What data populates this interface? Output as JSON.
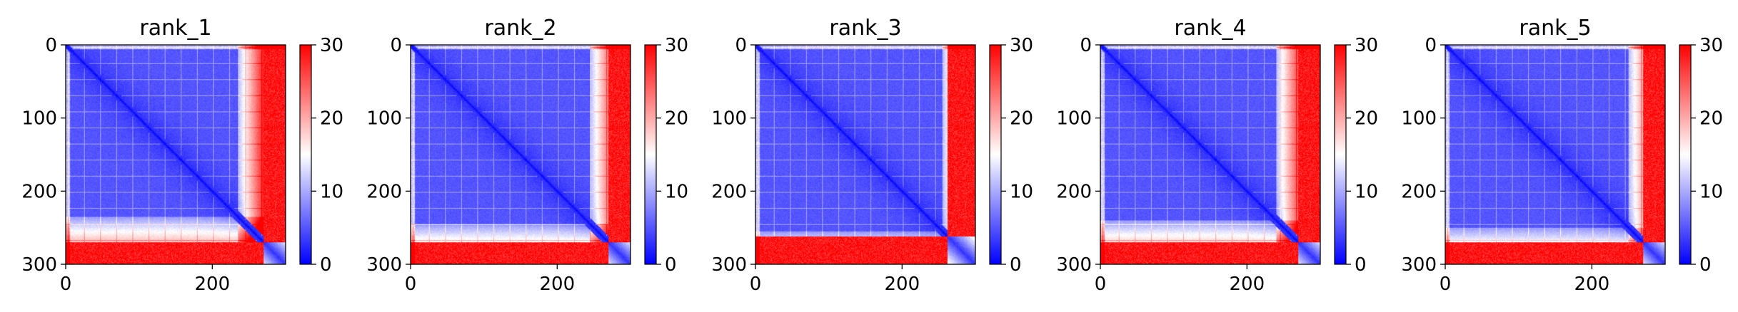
{
  "chart_data": [
    {
      "type": "heatmap",
      "title": "rank_1",
      "xlabel": "",
      "ylabel": "",
      "xlim": [
        0,
        300
      ],
      "ylim": [
        300,
        0
      ],
      "x_ticks": [
        "0",
        "200"
      ],
      "y_ticks": [
        "0",
        "100",
        "200",
        "300"
      ],
      "colorbar": {
        "range": [
          0,
          30
        ],
        "ticks": [
          "0",
          "10",
          "20",
          "30"
        ],
        "colormap": "bwr"
      },
      "domain_boundary": 270,
      "edge": {
        "high": 30,
        "low_start": 235
      },
      "notes": "pairwise distance matrix; low values (blue) in upper-left block up to ~270, high values (red) in last ~30 rows/cols"
    },
    {
      "type": "heatmap",
      "title": "rank_2",
      "xlabel": "",
      "ylabel": "",
      "xlim": [
        0,
        300
      ],
      "ylim": [
        300,
        0
      ],
      "x_ticks": [
        "0",
        "200"
      ],
      "y_ticks": [
        "0",
        "100",
        "200",
        "300"
      ],
      "colorbar": {
        "range": [
          0,
          30
        ],
        "ticks": [
          "0",
          "10",
          "20",
          "30"
        ],
        "colormap": "bwr"
      },
      "domain_boundary": 270,
      "edge": {
        "high": 30,
        "low_start": 245
      }
    },
    {
      "type": "heatmap",
      "title": "rank_3",
      "xlabel": "",
      "ylabel": "",
      "xlim": [
        0,
        300
      ],
      "ylim": [
        300,
        0
      ],
      "x_ticks": [
        "0",
        "200"
      ],
      "y_ticks": [
        "0",
        "100",
        "200",
        "300"
      ],
      "colorbar": {
        "range": [
          0,
          30
        ],
        "ticks": [
          "0",
          "10",
          "20",
          "30"
        ],
        "colormap": "bwr"
      },
      "domain_boundary": 262,
      "edge": {
        "high": 30,
        "low_start": 255
      }
    },
    {
      "type": "heatmap",
      "title": "rank_4",
      "xlabel": "",
      "ylabel": "",
      "xlim": [
        0,
        300
      ],
      "ylim": [
        300,
        0
      ],
      "x_ticks": [
        "0",
        "200"
      ],
      "y_ticks": [
        "0",
        "100",
        "200",
        "300"
      ],
      "colorbar": {
        "range": [
          0,
          30
        ],
        "ticks": [
          "0",
          "10",
          "20",
          "30"
        ],
        "colormap": "bwr"
      },
      "domain_boundary": 270,
      "edge": {
        "high": 30,
        "low_start": 240
      }
    },
    {
      "type": "heatmap",
      "title": "rank_5",
      "xlabel": "",
      "ylabel": "",
      "xlim": [
        0,
        300
      ],
      "ylim": [
        300,
        0
      ],
      "x_ticks": [
        "0",
        "200"
      ],
      "y_ticks": [
        "0",
        "100",
        "200",
        "300"
      ],
      "colorbar": {
        "range": [
          0,
          30
        ],
        "ticks": [
          "0",
          "10",
          "20",
          "30"
        ],
        "colormap": "bwr"
      },
      "domain_boundary": 270,
      "edge": {
        "high": 30,
        "low_start": 250
      }
    }
  ]
}
